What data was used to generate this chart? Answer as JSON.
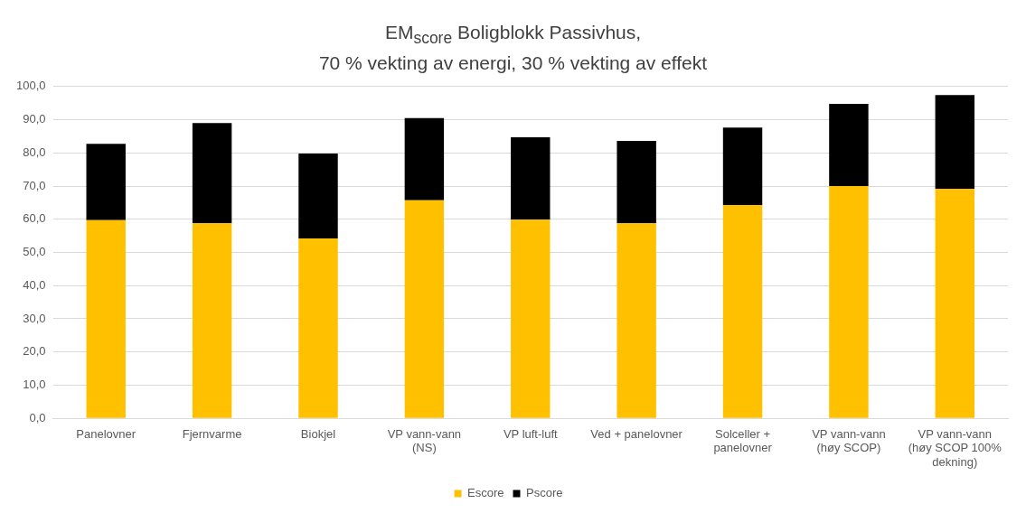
{
  "chart_data": {
    "type": "bar",
    "title": "EM$_{score}$ Boligblokk Passivhus,",
    "subtitle": "70 % vekting av energi, 30 % vekting av effekt",
    "categories": [
      "Panelovner",
      "Fjernvarme",
      "Biokjel",
      "VP vann-vann (NS)",
      "VP luft-luft",
      "Ved + panelovner",
      "Solceller + panelovner",
      "VP vann-vann (høy SCOP)",
      "VP vann-vann (høy SCOP 100% dekning)"
    ],
    "stacked": true,
    "series": [
      {
        "name": "Escore",
        "color": "#ffc000",
        "values": [
          59.7,
          58.8,
          54.2,
          65.7,
          59.9,
          58.8,
          64.3,
          70.0,
          69.2
        ]
      },
      {
        "name": "Pscore",
        "color": "#000000",
        "values": [
          23.0,
          30.2,
          25.6,
          24.8,
          24.8,
          24.8,
          23.3,
          24.8,
          28.2
        ]
      }
    ],
    "ylim": [
      0,
      100
    ],
    "yticks": [
      {
        "value": 0,
        "label": "0,0"
      },
      {
        "value": 10,
        "label": "10,0"
      },
      {
        "value": 20,
        "label": "20,0"
      },
      {
        "value": 30,
        "label": "30,0"
      },
      {
        "value": 40,
        "label": "40,0"
      },
      {
        "value": 50,
        "label": "50,0"
      },
      {
        "value": 60,
        "label": "60,0"
      },
      {
        "value": 70,
        "label": "70,0"
      },
      {
        "value": 80,
        "label": "80,0"
      },
      {
        "value": 90,
        "label": "90,0"
      },
      {
        "value": 100,
        "label": "100,0"
      }
    ],
    "grid": "y",
    "legend": "bottom"
  }
}
